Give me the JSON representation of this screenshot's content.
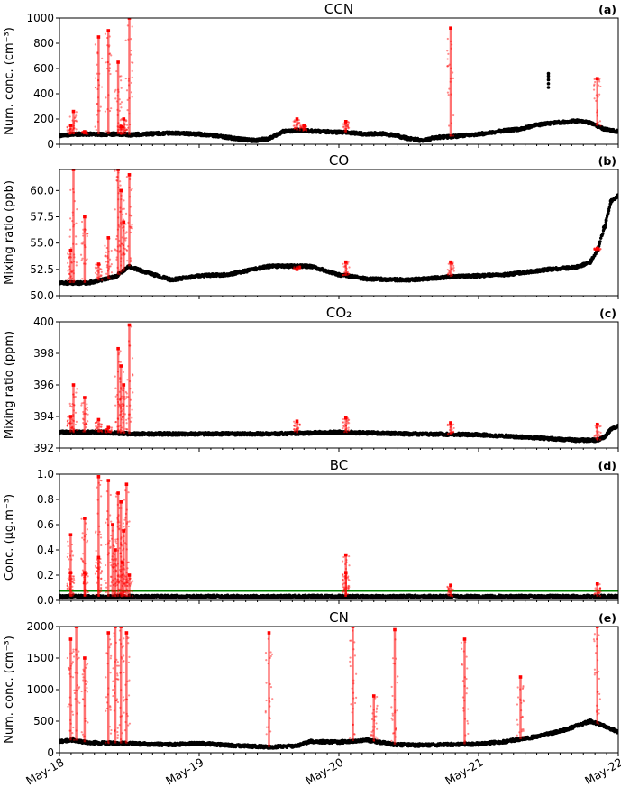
{
  "chart_data": [
    {
      "type": "scatter",
      "title": "CCN",
      "panel_label": "(a)",
      "ylabel": "Num. conc. (cm⁻³)",
      "ylim": [
        0,
        1000
      ],
      "yticks": [
        0,
        200,
        400,
        600,
        800,
        1000
      ],
      "ytick_labels": [
        "0",
        "200",
        "400",
        "600",
        "800",
        "1000"
      ],
      "series": [
        {
          "color": "#000000",
          "x": [
            0,
            0.05,
            0.1,
            0.2,
            0.3,
            0.4,
            0.5,
            0.6,
            0.7,
            0.8,
            0.9,
            1.0,
            1.1,
            1.2,
            1.3,
            1.4,
            1.5,
            1.6,
            1.7,
            1.8,
            1.9,
            2.0,
            2.1,
            2.2,
            2.3,
            2.4,
            2.5,
            2.6,
            2.7,
            2.8,
            2.9,
            3.0,
            3.1,
            3.2,
            3.3,
            3.4,
            3.5,
            3.6,
            3.7,
            3.8,
            3.9,
            4.0
          ],
          "y": [
            70,
            75,
            80,
            80,
            78,
            80,
            75,
            80,
            85,
            88,
            85,
            80,
            70,
            55,
            40,
            30,
            45,
            100,
            110,
            105,
            100,
            95,
            90,
            80,
            85,
            70,
            45,
            30,
            55,
            60,
            70,
            80,
            95,
            110,
            120,
            150,
            165,
            175,
            185,
            170,
            120,
            100
          ]
        },
        {
          "color": "#ff0000",
          "x": [
            0.08,
            0.1,
            0.18,
            0.28,
            0.35,
            0.42,
            0.44,
            0.46,
            0.5,
            1.7,
            1.75,
            2.05,
            2.8,
            3.85
          ],
          "y": [
            150,
            260,
            100,
            850,
            900,
            650,
            140,
            200,
            1000,
            200,
            150,
            180,
            920,
            520
          ]
        },
        {
          "color": "#000000",
          "x": [
            3.5,
            3.5,
            3.5,
            3.5,
            3.5
          ],
          "y": [
            450,
            480,
            510,
            540,
            560
          ]
        }
      ]
    },
    {
      "type": "scatter",
      "title": "CO",
      "panel_label": "(b)",
      "ylabel": "Mixing ratio (ppb)",
      "ylim": [
        50,
        62
      ],
      "yticks": [
        50,
        52.5,
        55,
        57.5,
        60
      ],
      "ytick_labels": [
        "50.0",
        "52.5",
        "55.0",
        "57.5",
        "60.0"
      ],
      "series": [
        {
          "color": "#000000",
          "x": [
            0,
            0.2,
            0.4,
            0.5,
            0.6,
            0.8,
            1.0,
            1.2,
            1.5,
            1.8,
            2.0,
            2.2,
            2.5,
            2.8,
            3.0,
            3.2,
            3.5,
            3.7,
            3.8,
            3.85,
            3.9,
            3.95,
            4.0
          ],
          "y": [
            51.2,
            51.2,
            51.8,
            52.8,
            52.3,
            51.5,
            51.9,
            52.0,
            52.8,
            52.8,
            52.0,
            51.6,
            51.5,
            51.8,
            51.9,
            52.0,
            52.5,
            52.7,
            53.2,
            54.3,
            56.5,
            59.0,
            59.5
          ]
        },
        {
          "color": "#ff0000",
          "x": [
            0.08,
            0.1,
            0.18,
            0.28,
            0.35,
            0.42,
            0.44,
            0.46,
            0.5,
            1.7,
            2.05,
            2.8,
            3.85
          ],
          "y": [
            54.3,
            62,
            57.5,
            53,
            55.5,
            62,
            60,
            57,
            61.5,
            52.5,
            53.2,
            53.2,
            54.5
          ]
        }
      ]
    },
    {
      "type": "scatter",
      "title": "CO₂",
      "panel_label": "(c)",
      "ylabel": "Mixing ratio (ppm)",
      "ylim": [
        392,
        400
      ],
      "yticks": [
        392,
        394,
        396,
        398,
        400
      ],
      "ytick_labels": [
        "392",
        "394",
        "396",
        "398",
        "400"
      ],
      "series": [
        {
          "color": "#000000",
          "x": [
            0,
            0.3,
            0.5,
            1.0,
            1.5,
            2.0,
            2.5,
            3.0,
            3.3,
            3.5,
            3.7,
            3.85,
            3.9,
            3.95,
            4.0
          ],
          "y": [
            393.0,
            393.0,
            392.9,
            392.9,
            392.9,
            393.0,
            392.9,
            392.85,
            392.7,
            392.6,
            392.5,
            392.5,
            392.7,
            393.2,
            393.4
          ]
        },
        {
          "color": "#ff0000",
          "x": [
            0.08,
            0.1,
            0.18,
            0.28,
            0.35,
            0.42,
            0.44,
            0.46,
            0.5,
            1.7,
            2.05,
            2.8,
            3.85
          ],
          "y": [
            394.0,
            396.0,
            395.2,
            393.8,
            393.3,
            398.3,
            397.2,
            396.0,
            399.8,
            393.7,
            393.9,
            393.6,
            393.5
          ]
        }
      ]
    },
    {
      "type": "scatter",
      "title": "BC",
      "panel_label": "(d)",
      "ylabel": "Conc. (µg.m⁻³)",
      "ylim": [
        0,
        1.0
      ],
      "yticks": [
        0,
        0.2,
        0.4,
        0.6,
        0.8,
        1.0
      ],
      "ytick_labels": [
        "0.0",
        "0.2",
        "0.4",
        "0.6",
        "0.8",
        "1.0"
      ],
      "threshold": 0.075,
      "threshold_color": "#008000",
      "series": [
        {
          "color": "#000000",
          "x": [
            0,
            1,
            2,
            3,
            4
          ],
          "y": [
            0.03,
            0.03,
            0.03,
            0.03,
            0.03
          ]
        },
        {
          "color": "#ff0000",
          "x": [
            0.08,
            0.08,
            0.18,
            0.18,
            0.28,
            0.28,
            0.35,
            0.38,
            0.4,
            0.42,
            0.44,
            0.45,
            0.46,
            0.48,
            0.5,
            2.05,
            2.05,
            2.8,
            3.85
          ],
          "y": [
            0.52,
            0.22,
            0.65,
            0.22,
            0.98,
            0.34,
            0.95,
            0.6,
            0.4,
            0.85,
            0.78,
            0.3,
            0.55,
            0.92,
            0.2,
            0.36,
            0.22,
            0.12,
            0.13
          ]
        }
      ]
    },
    {
      "type": "scatter",
      "title": "CN",
      "panel_label": "(e)",
      "ylabel": "Num. conc. (cm⁻³)",
      "ylim": [
        0,
        2000
      ],
      "yticks": [
        0,
        500,
        1000,
        1500,
        2000
      ],
      "ytick_labels": [
        "0",
        "500",
        "1000",
        "1500",
        "2000"
      ],
      "series": [
        {
          "color": "#000000",
          "x": [
            0,
            0.1,
            0.2,
            0.4,
            0.6,
            0.8,
            1.0,
            1.2,
            1.5,
            1.7,
            1.8,
            2.0,
            2.2,
            2.4,
            2.6,
            2.8,
            3.0,
            3.2,
            3.4,
            3.6,
            3.8,
            3.9,
            4.0
          ],
          "y": [
            180,
            200,
            160,
            150,
            140,
            130,
            150,
            120,
            90,
            110,
            180,
            170,
            200,
            130,
            120,
            130,
            140,
            180,
            250,
            350,
            500,
            420,
            330
          ]
        },
        {
          "color": "#ff0000",
          "x": [
            0.08,
            0.12,
            0.18,
            0.35,
            0.4,
            0.44,
            0.48,
            1.5,
            2.1,
            2.25,
            2.4,
            2.9,
            3.3,
            3.85
          ],
          "y": [
            1800,
            2000,
            1500,
            1900,
            2000,
            2000,
            1900,
            1900,
            2000,
            900,
            1950,
            1800,
            1200,
            2000
          ]
        }
      ]
    }
  ],
  "x_axis": {
    "range": [
      "May-18",
      "May-22"
    ],
    "ticks": [
      0,
      1,
      2,
      3,
      4
    ],
    "tick_labels": [
      "May-18",
      "May-19",
      "May-20",
      "May-21",
      "May-22"
    ]
  }
}
